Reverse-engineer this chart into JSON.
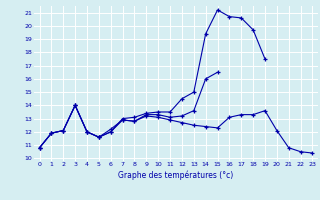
{
  "xlabel": "Graphe des températures (°c)",
  "ylabel": "",
  "x_ticks": [
    0,
    1,
    2,
    3,
    4,
    5,
    6,
    7,
    8,
    9,
    10,
    11,
    12,
    13,
    14,
    15,
    16,
    17,
    18,
    19,
    20,
    21,
    22,
    23
  ],
  "y_ticks": [
    10,
    11,
    12,
    13,
    14,
    15,
    16,
    17,
    18,
    19,
    20,
    21
  ],
  "xlim": [
    -0.5,
    23.5
  ],
  "ylim": [
    9.8,
    21.5
  ],
  "bg_color": "#d6eef2",
  "line_color": "#0000aa",
  "grid_color": "#ffffff",
  "line1_x": [
    0,
    1,
    2,
    3,
    4,
    5,
    6,
    7,
    8,
    9,
    10,
    11,
    12,
    13,
    14,
    15,
    16,
    17,
    18,
    19
  ],
  "line1_y": [
    10.8,
    11.9,
    12.1,
    14.0,
    12.0,
    11.6,
    12.0,
    13.0,
    13.1,
    13.4,
    13.5,
    13.5,
    14.5,
    15.0,
    19.4,
    21.2,
    20.7,
    20.6,
    19.7,
    17.5
  ],
  "line2_x": [
    0,
    1,
    2,
    3,
    4,
    5,
    6,
    7,
    8,
    9,
    10,
    11,
    12,
    13,
    14,
    15
  ],
  "line2_y": [
    10.8,
    11.9,
    12.1,
    14.0,
    12.0,
    11.6,
    12.2,
    12.9,
    12.8,
    13.3,
    13.3,
    13.1,
    13.2,
    13.6,
    16.0,
    16.5
  ],
  "line3_x": [
    0,
    1,
    2,
    3,
    4,
    5,
    6,
    7,
    8,
    9,
    10,
    11,
    12,
    13,
    14,
    15,
    16,
    17,
    18,
    19,
    20,
    21,
    22,
    23
  ],
  "line3_y": [
    10.8,
    11.9,
    12.1,
    14.0,
    12.0,
    11.6,
    12.0,
    12.9,
    12.8,
    13.2,
    13.1,
    12.9,
    12.7,
    12.5,
    12.4,
    12.3,
    13.1,
    13.3,
    13.3,
    13.6,
    12.1,
    10.8,
    10.5,
    10.4
  ]
}
